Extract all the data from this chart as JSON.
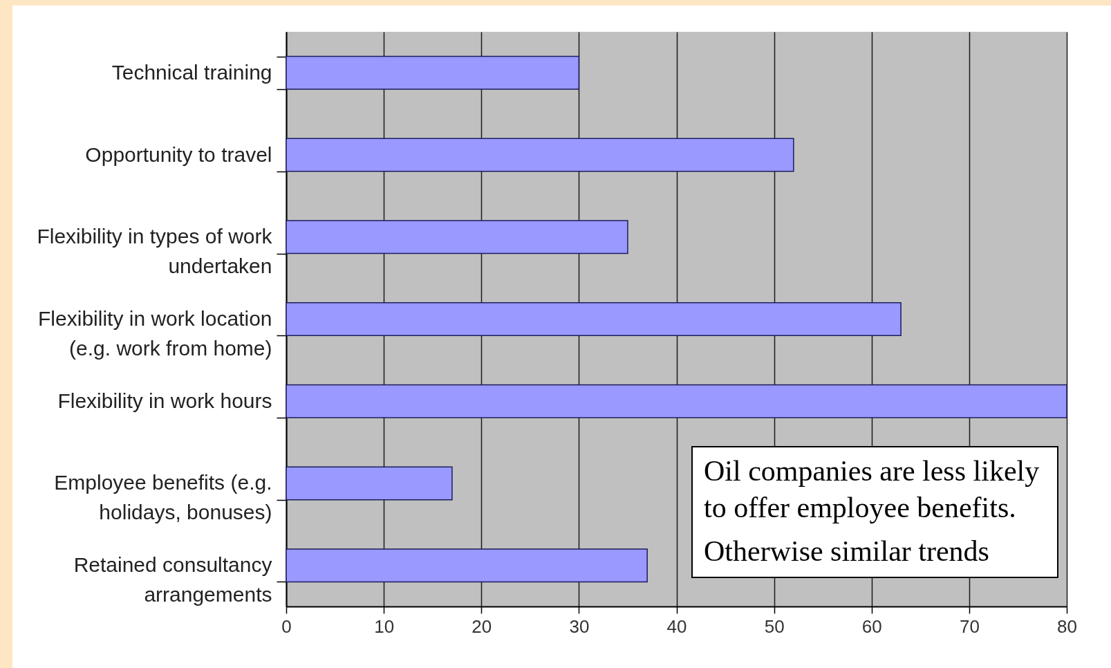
{
  "chart_data": {
    "type": "bar",
    "orientation": "horizontal",
    "categories": [
      "Technical training",
      "Opportunity to travel",
      "Flexibility in types of work undertaken",
      "Flexibility in work location (e.g. work from home)",
      "Flexibility in work hours",
      "Employee benefits (e.g. holidays, bonuses)",
      "Retained consultancy arrangements"
    ],
    "values": [
      30,
      52,
      35,
      63,
      80,
      17,
      37
    ],
    "color": "#9999ff",
    "xlim": [
      0,
      80
    ],
    "xticks": [
      0,
      10,
      20,
      30,
      40,
      50,
      60,
      70,
      80
    ],
    "grid": "x",
    "annotations": [
      "Oil companies are less likely to offer employee benefits.",
      "Otherwise similar trends"
    ]
  }
}
